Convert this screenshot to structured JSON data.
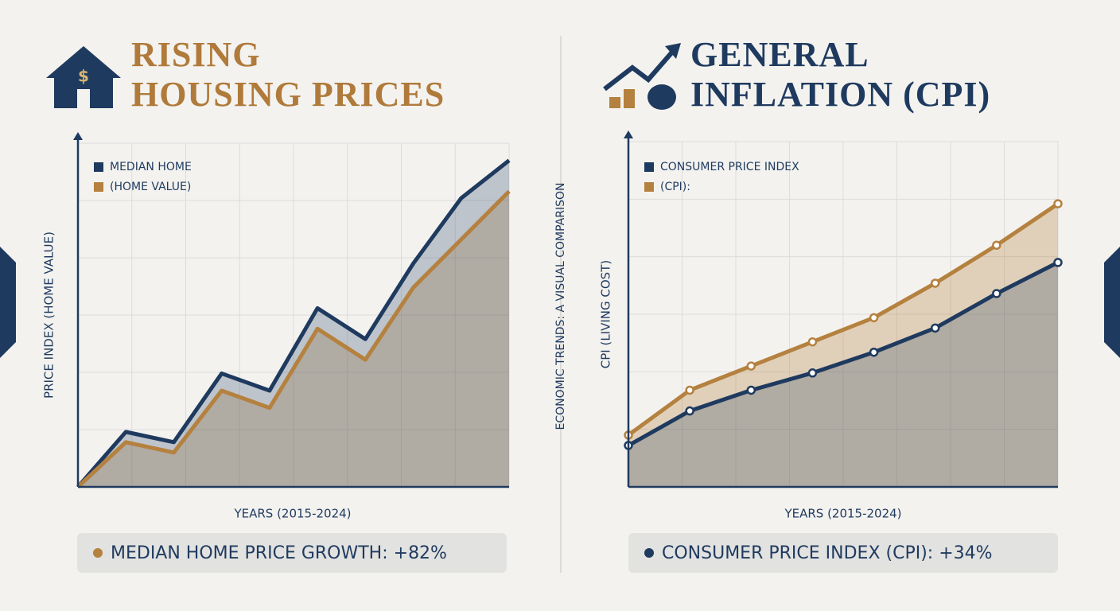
{
  "center_label": "ECONOMIC TRENDS: A VISUAL COMPARISON",
  "chart_data": [
    {
      "type": "line",
      "title": "RISING\nHOUSING PRICES",
      "title_color": "#b07a3a",
      "x_label": "YEARS (2015-2024)",
      "y_label": "PRICE INDEX (HOME VALUE)",
      "categories": [
        null,
        null,
        null,
        null,
        null,
        null,
        null,
        null,
        null,
        null
      ],
      "series": [
        {
          "name": "MEDIAN HOME",
          "color": "#1f3a5f",
          "values": [
            0,
            16,
            13,
            33,
            28,
            52,
            43,
            65,
            84,
            95
          ]
        },
        {
          "name": "(HOME VALUE)",
          "color": "#b5813f",
          "values": [
            0,
            13,
            10,
            28,
            23,
            46,
            37,
            58,
            72,
            86
          ]
        }
      ],
      "ylim": [
        0,
        100
      ],
      "grid": true,
      "markers": false,
      "annotation": "MEDIAN HOME PRICE GROWTH: +82%",
      "annotation_color": "#b5813f"
    },
    {
      "type": "line",
      "title": "GENERAL\nINFLATION (CPI)",
      "title_color": "#1f3a5f",
      "x_label": "YEARS (2015-2024)",
      "y_label": "CPI (LIVING COST)",
      "categories": [
        null,
        null,
        null,
        null,
        null,
        null,
        null,
        null
      ],
      "series": [
        {
          "name": "CONSUMER PRICE INDEX",
          "color": "#1f3a5f",
          "values": [
            12,
            22,
            28,
            33,
            39,
            46,
            56,
            65
          ]
        },
        {
          "name": "(CPI):",
          "color": "#b5813f",
          "values": [
            15,
            28,
            35,
            42,
            49,
            59,
            70,
            82
          ]
        }
      ],
      "ylim": [
        0,
        100
      ],
      "grid": true,
      "markers": true,
      "annotation": "CONSUMER PRICE INDEX (CPI): +34%",
      "annotation_color": "#1f3a5f"
    }
  ]
}
